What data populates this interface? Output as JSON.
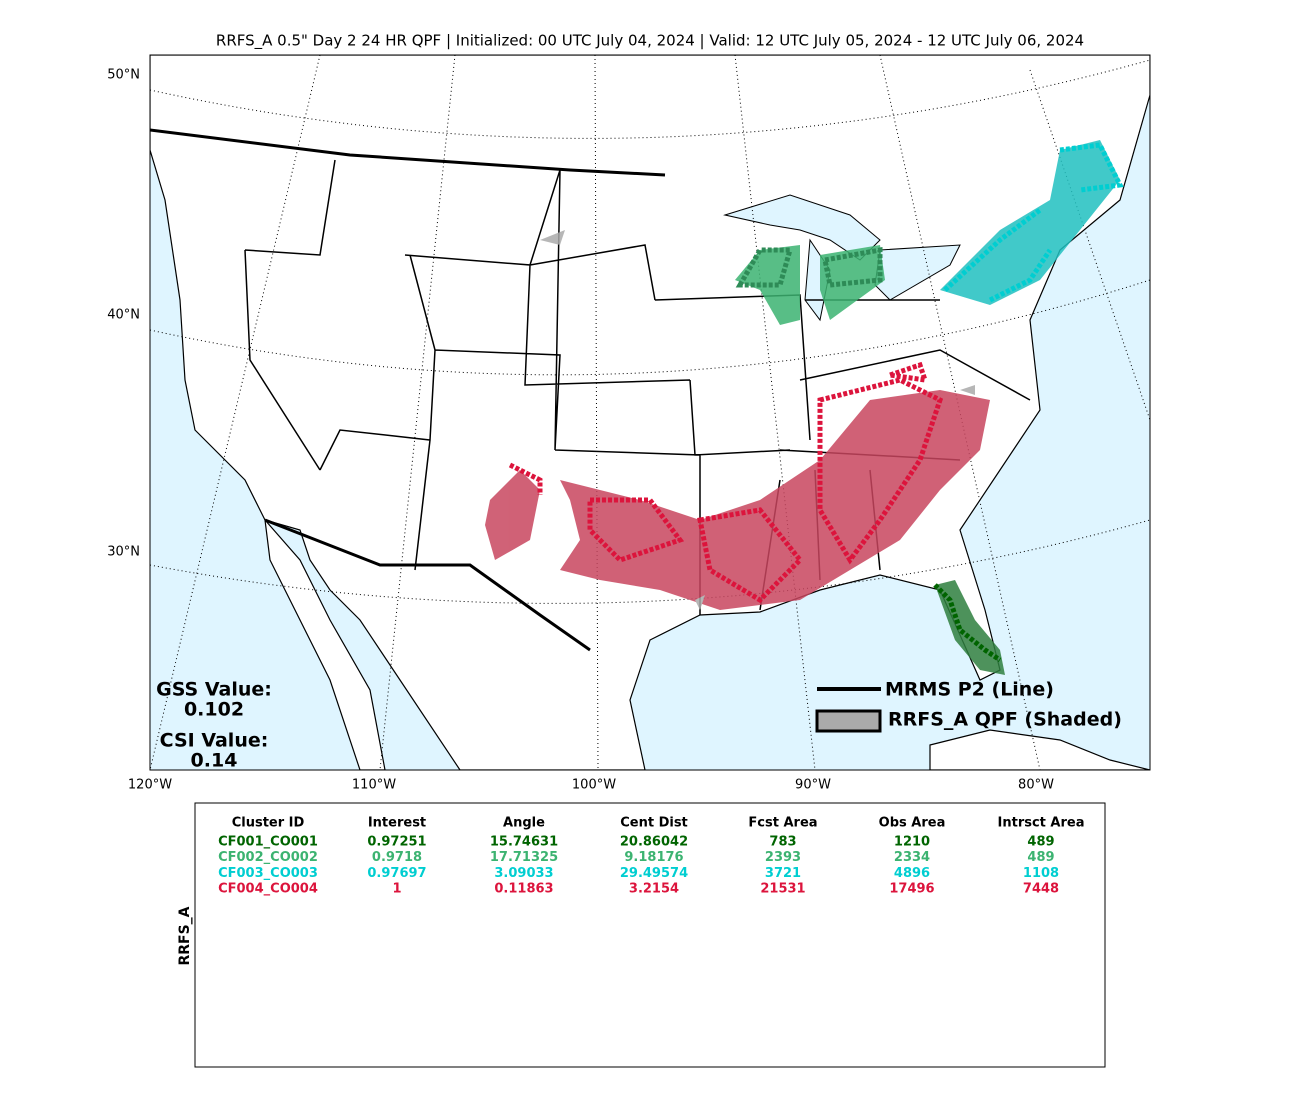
{
  "title": "RRFS_A 0.5\" Day 2 24 HR QPF | Initialized: 00 UTC July 04, 2024 | Valid: 12 UTC July 05, 2024 - 12 UTC July 06, 2024",
  "map": {
    "lat_labels": [
      "50°N",
      "40°N",
      "30°N"
    ],
    "lon_labels": [
      "120°W",
      "110°W",
      "100°W",
      "90°W",
      "80°W"
    ],
    "gss_label": "GSS Value:",
    "gss_value": "0.102",
    "csi_label": "CSI Value:",
    "csi_value": "0.14",
    "legend": [
      "MRMS P2 (Line)",
      "RRFS_A QPF (Shaded)"
    ]
  },
  "table": {
    "side_label": "RRFS_A",
    "headers": [
      "Cluster ID",
      "Interest",
      "Angle",
      "Cent Dist",
      "Fcst Area",
      "Obs Area",
      "Intrsct Area"
    ],
    "rows": [
      [
        "CF001_CO001",
        "0.97251",
        "15.74631",
        "20.86042",
        "783",
        "1210",
        "489"
      ],
      [
        "CF002_CO002",
        "0.9718",
        "17.71325",
        "9.18176",
        "2393",
        "2334",
        "489"
      ],
      [
        "CF003_CO003",
        "0.97697",
        "3.09033",
        "29.49574",
        "3721",
        "4896",
        "1108"
      ],
      [
        "CF004_CO004",
        "1",
        "0.11863",
        "3.2154",
        "21531",
        "17496",
        "7448"
      ]
    ]
  }
}
